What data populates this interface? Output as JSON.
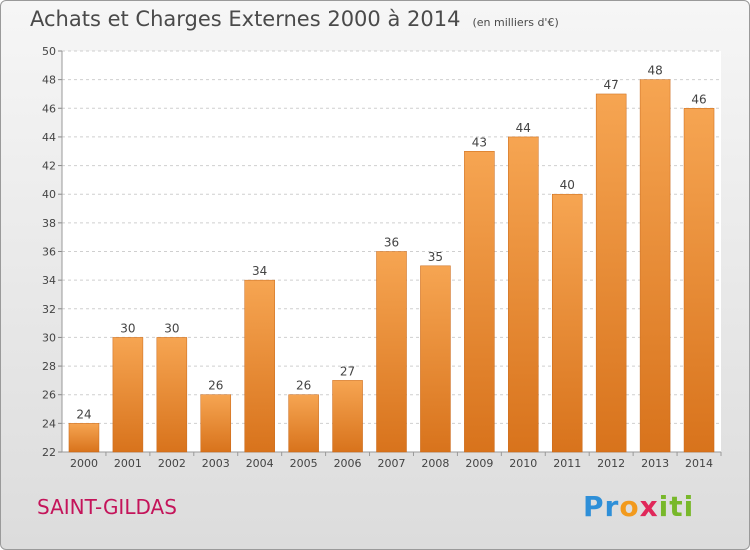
{
  "title": "Achats et Charges Externes 2000 à 2014",
  "unit": "(en milliers d'€)",
  "city": "SAINT-GILDAS",
  "logo": {
    "p1": "Pr",
    "p2": "o",
    "p3": "x",
    "p4": "iti"
  },
  "colors": {
    "bar": "#f39232",
    "bar_dark": "#d8731c",
    "city": "#c4145a"
  },
  "chart_data": {
    "type": "bar",
    "title": "Achats et Charges Externes 2000 à 2014",
    "subtitle": "(en milliers d'€)",
    "categories": [
      "2000",
      "2001",
      "2002",
      "2003",
      "2004",
      "2005",
      "2006",
      "2007",
      "2008",
      "2009",
      "2010",
      "2011",
      "2012",
      "2013",
      "2014"
    ],
    "values": [
      24,
      30,
      30,
      26,
      34,
      26,
      27,
      36,
      35,
      43,
      44,
      40,
      47,
      48,
      46
    ],
    "ylim": [
      22,
      50
    ],
    "yticks": [
      22,
      24,
      26,
      28,
      30,
      32,
      34,
      36,
      38,
      40,
      42,
      44,
      46,
      48,
      50
    ],
    "grid": "horizontal-dashed"
  }
}
